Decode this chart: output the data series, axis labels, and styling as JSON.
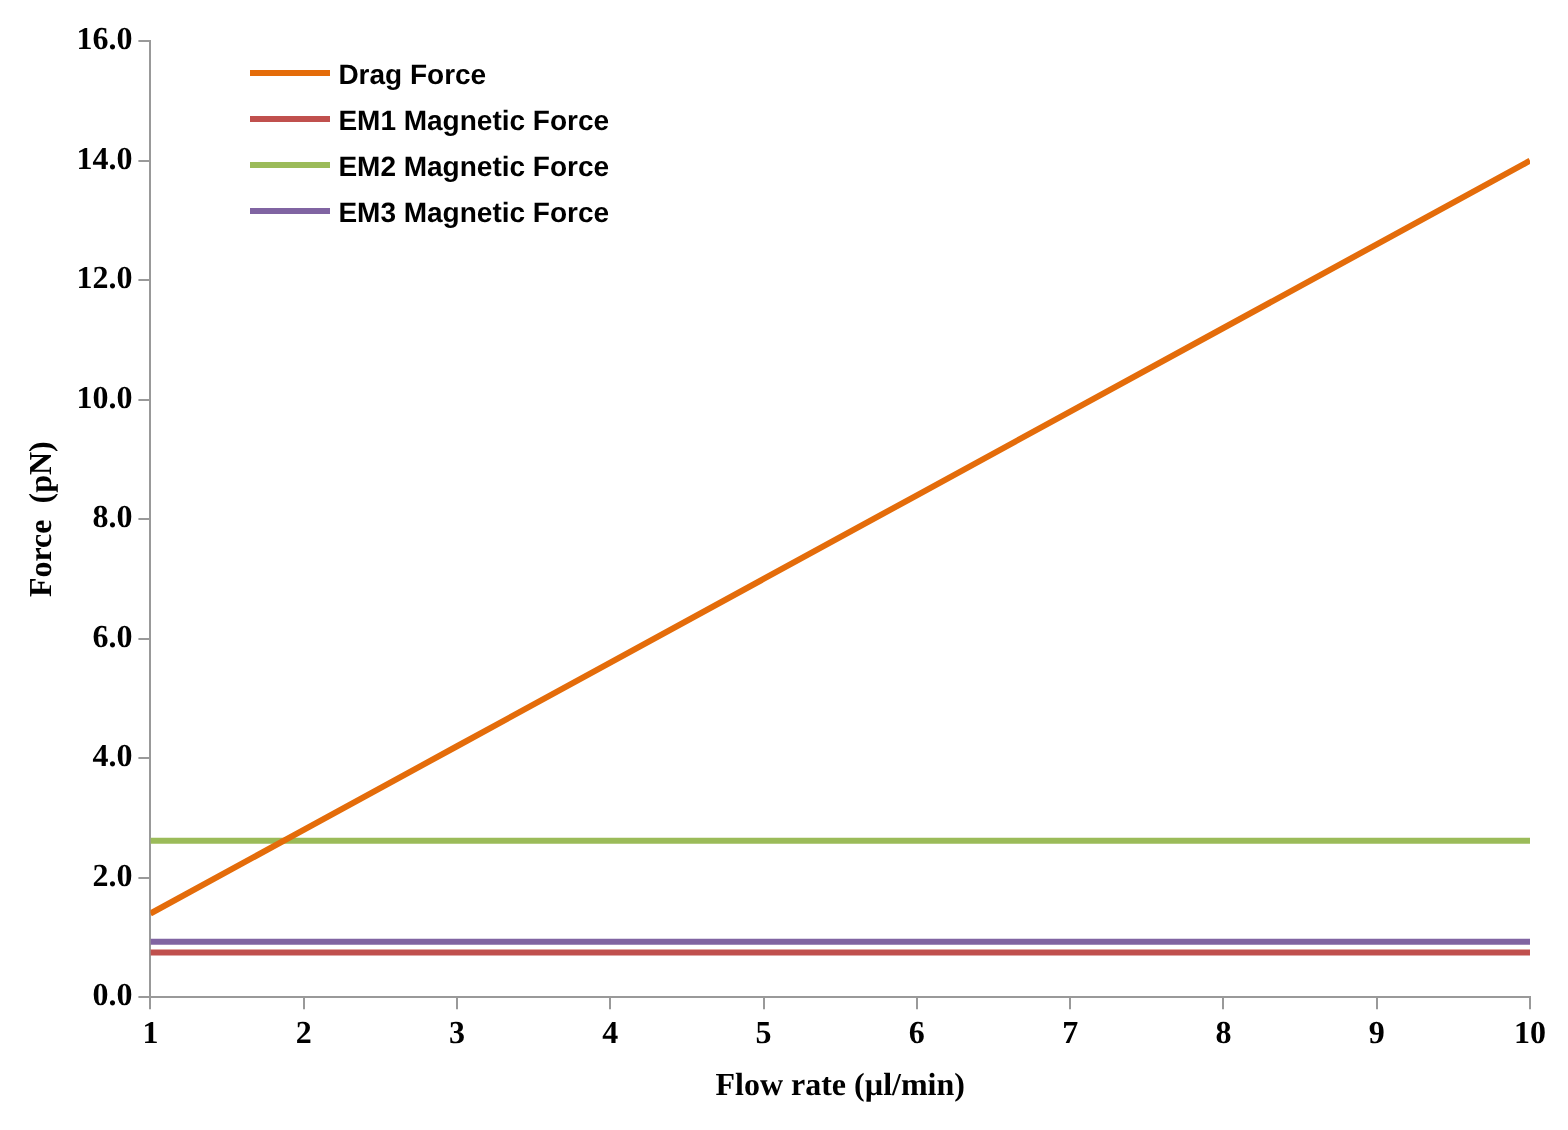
{
  "chart_data": {
    "type": "line",
    "xlabel": "Flow rate (µl/min)",
    "ylabel": "Force  (pN)",
    "x": [
      1,
      2,
      3,
      4,
      5,
      6,
      7,
      8,
      9,
      10
    ],
    "series": [
      {
        "name": "Drag Force",
        "color": "#e46c0a",
        "values": [
          1.4,
          2.8,
          4.2,
          5.6,
          7.0,
          8.4,
          9.8,
          11.2,
          12.6,
          14.0
        ]
      },
      {
        "name": "EM1 Magnetic Force",
        "color": "#c0504d",
        "values": [
          0.75,
          0.75,
          0.75,
          0.75,
          0.75,
          0.75,
          0.75,
          0.75,
          0.75,
          0.75
        ]
      },
      {
        "name": "EM2 Magnetic Force",
        "color": "#9bbb59",
        "values": [
          2.62,
          2.62,
          2.62,
          2.62,
          2.62,
          2.62,
          2.62,
          2.62,
          2.62,
          2.62
        ]
      },
      {
        "name": "EM3 Magnetic Force",
        "color": "#8064a2",
        "values": [
          0.93,
          0.93,
          0.93,
          0.93,
          0.93,
          0.93,
          0.93,
          0.93,
          0.93,
          0.93
        ]
      }
    ],
    "xlim": [
      1,
      10
    ],
    "xticks": [
      1,
      2,
      3,
      4,
      5,
      6,
      7,
      8,
      9,
      10
    ],
    "ylim": [
      0,
      16
    ],
    "yticks": [
      {
        "value": 0,
        "label": "0.0"
      },
      {
        "value": 2,
        "label": "2.0"
      },
      {
        "value": 4,
        "label": "4.0"
      },
      {
        "value": 6,
        "label": "6.0"
      },
      {
        "value": 8,
        "label": "8.0"
      },
      {
        "value": 10,
        "label": "10.0"
      },
      {
        "value": 12,
        "label": "12.0"
      },
      {
        "value": 14,
        "label": "14.0"
      },
      {
        "value": 16,
        "label": "16.0"
      }
    ],
    "grid": false,
    "legend": "top left",
    "marker": "none",
    "line_style": "solid"
  }
}
